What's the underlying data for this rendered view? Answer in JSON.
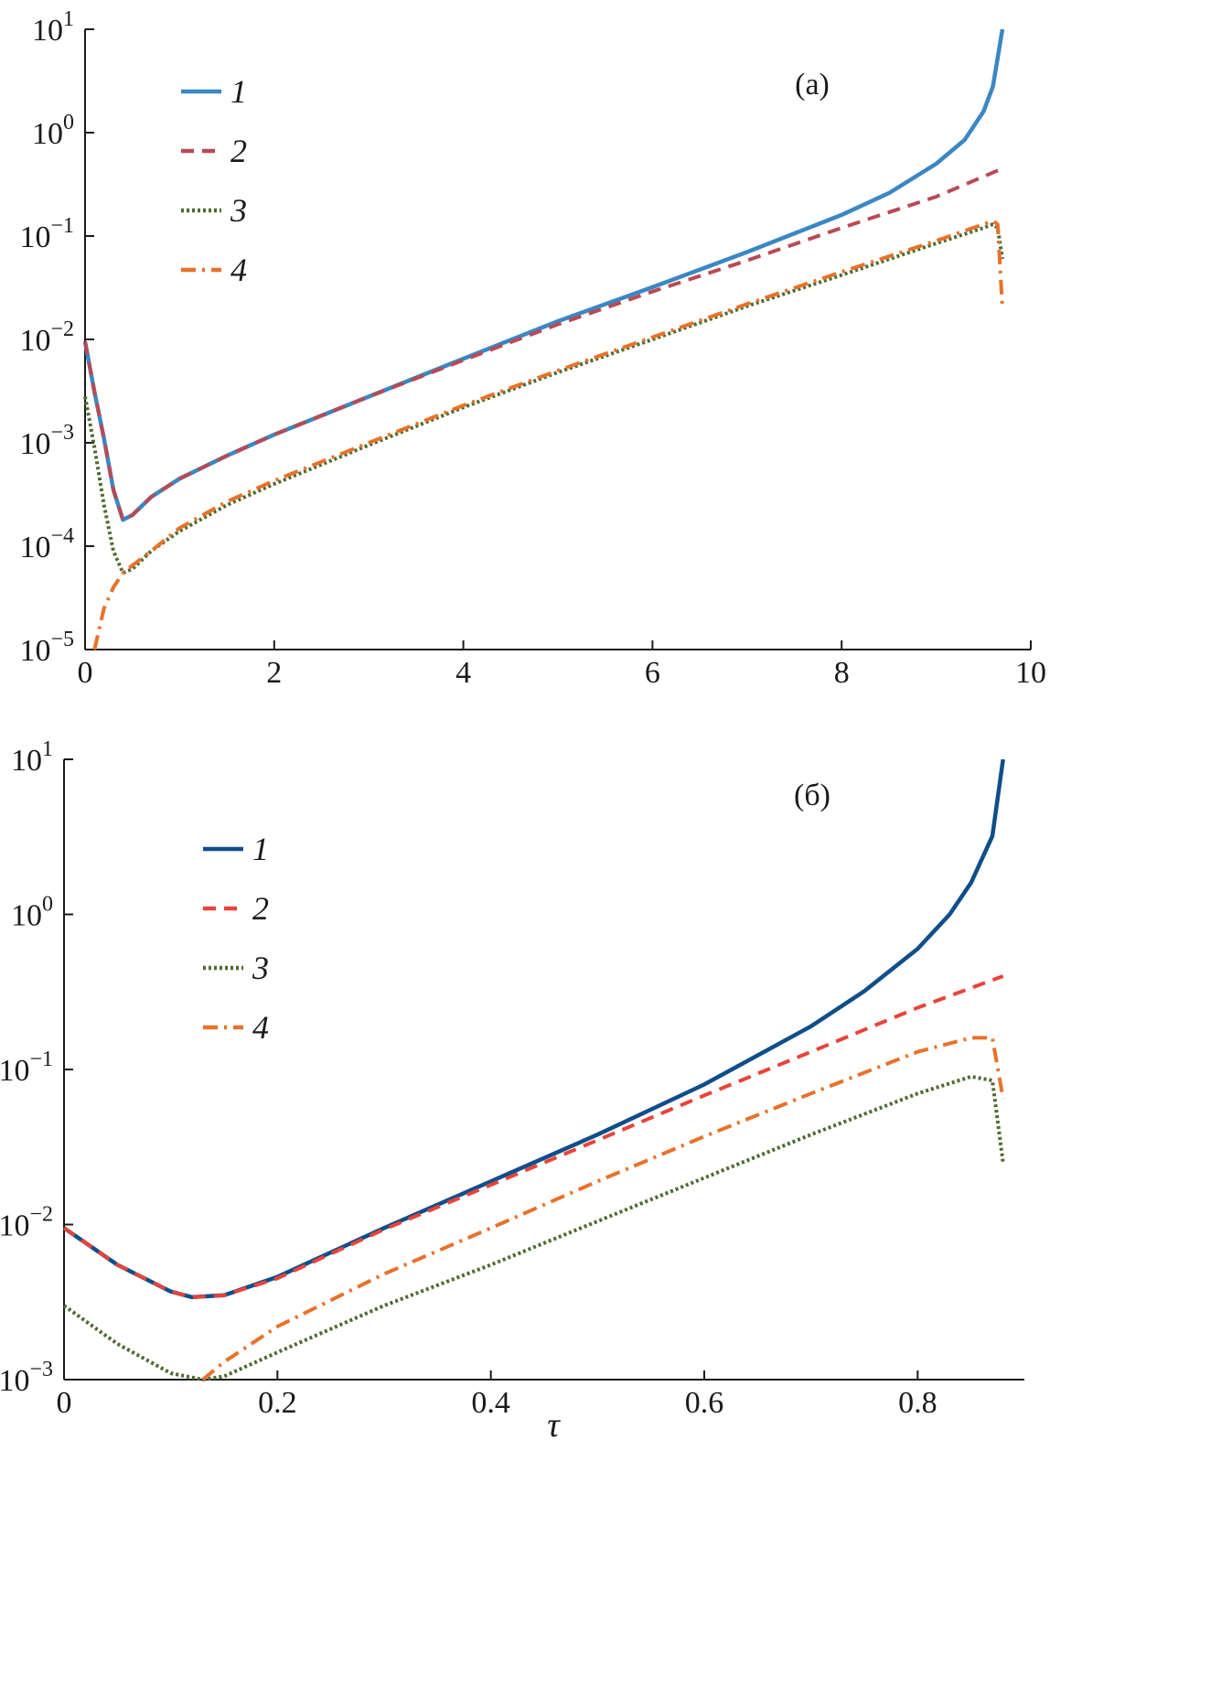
{
  "chart_data": [
    {
      "type": "line",
      "panel_label": "(a)",
      "xlim": [
        0,
        10
      ],
      "ylim": [
        1e-05,
        10
      ],
      "yscale": "log",
      "xticks": [
        0,
        2,
        4,
        6,
        8,
        10
      ],
      "xtick_labels": [
        "0",
        "2",
        "4",
        "6",
        "8",
        "10"
      ],
      "yticks": [
        1e-05,
        0.0001,
        0.001,
        0.01,
        0.1,
        1,
        10
      ],
      "ytick_labels": [
        {
          "base": "10",
          "exp": "−5"
        },
        {
          "base": "10",
          "exp": "−4"
        },
        {
          "base": "10",
          "exp": "−3"
        },
        {
          "base": "10",
          "exp": "−2"
        },
        {
          "base": "10",
          "exp": "−1"
        },
        {
          "base": "10",
          "exp": "0"
        },
        {
          "base": "10",
          "exp": "1"
        }
      ],
      "xlabel": "",
      "legend_position": "top-left",
      "grid": false,
      "series": [
        {
          "name": "1",
          "color": "#3a87c4",
          "style": "solid",
          "x": [
            0,
            0.1,
            0.2,
            0.3,
            0.4,
            0.5,
            0.7,
            1,
            1.5,
            2,
            3,
            4,
            5,
            6,
            7,
            8,
            8.5,
            9,
            9.3,
            9.5,
            9.6,
            9.7
          ],
          "y": [
            0.0095,
            0.0031,
            0.0011,
            0.00035,
            0.00018,
            0.0002,
            0.0003,
            0.00045,
            0.00075,
            0.0012,
            0.0028,
            0.0065,
            0.015,
            0.032,
            0.07,
            0.16,
            0.26,
            0.5,
            0.85,
            1.6,
            2.8,
            10
          ]
        },
        {
          "name": "2",
          "color": "#b84a56",
          "style": "dashed",
          "x": [
            0,
            0.1,
            0.2,
            0.3,
            0.4,
            0.5,
            0.7,
            1,
            1.5,
            2,
            3,
            4,
            5,
            6,
            7,
            8,
            9,
            9.7
          ],
          "y": [
            0.0095,
            0.0031,
            0.0011,
            0.00035,
            0.00018,
            0.0002,
            0.0003,
            0.00045,
            0.00075,
            0.0012,
            0.0028,
            0.0063,
            0.014,
            0.029,
            0.058,
            0.12,
            0.24,
            0.45
          ]
        },
        {
          "name": "3",
          "color": "#4e6b2e",
          "style": "dotted",
          "x": [
            0,
            0.1,
            0.2,
            0.3,
            0.4,
            0.5,
            0.7,
            1,
            1.5,
            2,
            3,
            4,
            5,
            6,
            7,
            8,
            9,
            9.5,
            9.6,
            9.65,
            9.7
          ],
          "y": [
            0.0028,
            0.0009,
            0.00025,
            9e-05,
            5.5e-05,
            6e-05,
            9e-05,
            0.00014,
            0.00025,
            0.0004,
            0.00095,
            0.0022,
            0.0048,
            0.01,
            0.021,
            0.042,
            0.085,
            0.12,
            0.13,
            0.12,
            0.06
          ]
        },
        {
          "name": "4",
          "color": "#e8722a",
          "style": "dashdot",
          "x": [
            0.1,
            0.2,
            0.3,
            0.4,
            0.5,
            0.7,
            1,
            1.5,
            2,
            3,
            4,
            5,
            6,
            7,
            8,
            9,
            9.5,
            9.6,
            9.65,
            9.7
          ],
          "y": [
            1e-05,
            2.5e-05,
            4e-05,
            5.5e-05,
            6.5e-05,
            9e-05,
            0.00015,
            0.00027,
            0.00043,
            0.001,
            0.0023,
            0.005,
            0.0105,
            0.022,
            0.045,
            0.09,
            0.13,
            0.14,
            0.13,
            0.02
          ]
        }
      ]
    },
    {
      "type": "line",
      "panel_label": "(б)",
      "xlim": [
        0,
        0.9
      ],
      "ylim": [
        0.001,
        10
      ],
      "yscale": "log",
      "xticks": [
        0,
        0.2,
        0.4,
        0.6,
        0.8
      ],
      "xtick_labels": [
        "0",
        "0.2",
        "0.4",
        "0.6",
        "0.8"
      ],
      "yticks": [
        0.001,
        0.01,
        0.1,
        1,
        10
      ],
      "ytick_labels": [
        {
          "base": "10",
          "exp": "−3"
        },
        {
          "base": "10",
          "exp": "−2"
        },
        {
          "base": "10",
          "exp": "−1"
        },
        {
          "base": "10",
          "exp": "0"
        },
        {
          "base": "10",
          "exp": "1"
        }
      ],
      "xlabel": "τ",
      "legend_position": "top-left",
      "grid": false,
      "series": [
        {
          "name": "1",
          "color": "#0f4e8a",
          "style": "solid",
          "x": [
            0,
            0.05,
            0.1,
            0.12,
            0.15,
            0.2,
            0.3,
            0.4,
            0.5,
            0.6,
            0.7,
            0.75,
            0.8,
            0.83,
            0.85,
            0.87,
            0.88
          ],
          "y": [
            0.0095,
            0.0055,
            0.0037,
            0.0034,
            0.0035,
            0.0046,
            0.0095,
            0.019,
            0.038,
            0.08,
            0.19,
            0.32,
            0.6,
            1.0,
            1.6,
            3.2,
            10
          ]
        },
        {
          "name": "2",
          "color": "#e8443a",
          "style": "dashed",
          "x": [
            0,
            0.05,
            0.1,
            0.12,
            0.15,
            0.2,
            0.3,
            0.4,
            0.5,
            0.6,
            0.7,
            0.8,
            0.88
          ],
          "y": [
            0.0095,
            0.0055,
            0.0037,
            0.0034,
            0.0035,
            0.0045,
            0.0093,
            0.018,
            0.035,
            0.068,
            0.13,
            0.25,
            0.4
          ]
        },
        {
          "name": "3",
          "color": "#4e6b2e",
          "style": "dotted",
          "x": [
            0,
            0.05,
            0.1,
            0.13,
            0.15,
            0.2,
            0.3,
            0.4,
            0.5,
            0.6,
            0.7,
            0.8,
            0.85,
            0.87,
            0.88
          ],
          "y": [
            0.003,
            0.0017,
            0.0011,
            0.001,
            0.00105,
            0.0015,
            0.003,
            0.0055,
            0.0105,
            0.02,
            0.038,
            0.07,
            0.09,
            0.085,
            0.025
          ]
        },
        {
          "name": "4",
          "color": "#e8722a",
          "style": "dashdot",
          "x": [
            0.13,
            0.15,
            0.2,
            0.3,
            0.4,
            0.5,
            0.6,
            0.7,
            0.8,
            0.85,
            0.87,
            0.88
          ],
          "y": [
            0.001,
            0.0013,
            0.0022,
            0.0048,
            0.0095,
            0.019,
            0.037,
            0.07,
            0.13,
            0.16,
            0.16,
            0.065
          ]
        }
      ]
    }
  ]
}
